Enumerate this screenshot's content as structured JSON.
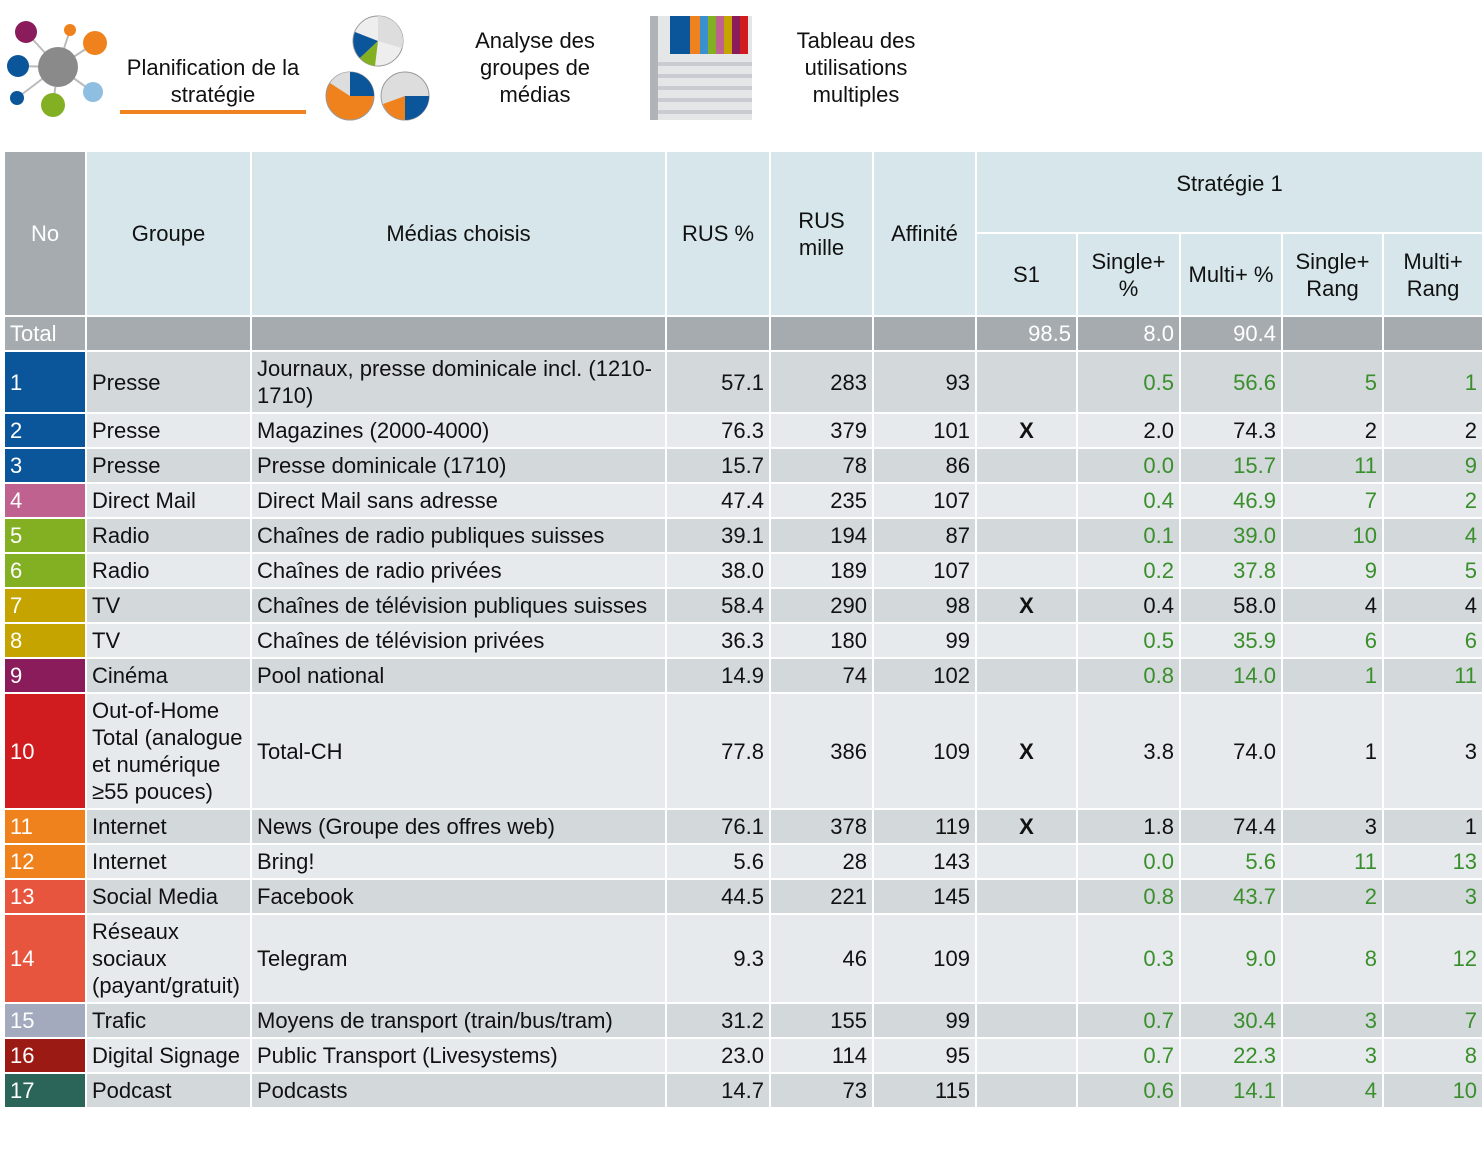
{
  "nav": {
    "tabs": [
      "Planification de la stratégie",
      "Analyse des groupes de médias",
      "Tableau des utilisations multiples"
    ]
  },
  "table": {
    "header": {
      "no": "No",
      "group": "Groupe",
      "media": "Médias choisis",
      "rus_pct": "RUS %",
      "rus_mille": "RUS mille",
      "affinity": "Affinité",
      "strategy": "Stratégie 1",
      "s1": "S1",
      "single_pct": "Single+ %",
      "multi_pct": "Multi+ %",
      "single_rank": "Single+ Rang",
      "multi_rank": "Multi+ Rang"
    },
    "total": {
      "label": "Total",
      "s1": "98.5",
      "single_pct": "8.0",
      "multi_pct": "90.4"
    },
    "rows": [
      {
        "no": "1",
        "color": "#0b559a",
        "group": "Presse",
        "media": "Journaux, presse dominicale incl. (1210-1710)",
        "rus_pct": "57.1",
        "rus_mille": "283",
        "affinity": "93",
        "s1": null,
        "single_pct": "0.5",
        "multi_pct": "56.6",
        "single_rank": "5",
        "multi_rank": "1"
      },
      {
        "no": "2",
        "color": "#0b559a",
        "group": "Presse",
        "media": "Magazines (2000-4000)",
        "rus_pct": "76.3",
        "rus_mille": "379",
        "affinity": "101",
        "s1": "X",
        "single_pct": "2.0",
        "multi_pct": "74.3",
        "single_rank": "2",
        "multi_rank": "2"
      },
      {
        "no": "3",
        "color": "#0b559a",
        "group": "Presse",
        "media": "Presse dominicale (1710)",
        "rus_pct": "15.7",
        "rus_mille": "78",
        "affinity": "86",
        "s1": null,
        "single_pct": "0.0",
        "multi_pct": "15.7",
        "single_rank": "11",
        "multi_rank": "9"
      },
      {
        "no": "4",
        "color": "#c0628f",
        "group": "Direct Mail",
        "media": "Direct Mail sans adresse",
        "rus_pct": "47.4",
        "rus_mille": "235",
        "affinity": "107",
        "s1": null,
        "single_pct": "0.4",
        "multi_pct": "46.9",
        "single_rank": "7",
        "multi_rank": "2"
      },
      {
        "no": "5",
        "color": "#82b022",
        "group": "Radio",
        "media": "Chaînes de radio publiques suisses",
        "rus_pct": "39.1",
        "rus_mille": "194",
        "affinity": "87",
        "s1": null,
        "single_pct": "0.1",
        "multi_pct": "39.0",
        "single_rank": "10",
        "multi_rank": "4"
      },
      {
        "no": "6",
        "color": "#82b022",
        "group": "Radio",
        "media": "Chaînes de radio privées",
        "rus_pct": "38.0",
        "rus_mille": "189",
        "affinity": "107",
        "s1": null,
        "single_pct": "0.2",
        "multi_pct": "37.8",
        "single_rank": "9",
        "multi_rank": "5"
      },
      {
        "no": "7",
        "color": "#c6a400",
        "group": "TV",
        "media": "Chaînes de télévision publiques suisses",
        "rus_pct": "58.4",
        "rus_mille": "290",
        "affinity": "98",
        "s1": "X",
        "single_pct": "0.4",
        "multi_pct": "58.0",
        "single_rank": "4",
        "multi_rank": "4"
      },
      {
        "no": "8",
        "color": "#c6a400",
        "group": "TV",
        "media": "Chaînes de télévision privées",
        "rus_pct": "36.3",
        "rus_mille": "180",
        "affinity": "99",
        "s1": null,
        "single_pct": "0.5",
        "multi_pct": "35.9",
        "single_rank": "6",
        "multi_rank": "6"
      },
      {
        "no": "9",
        "color": "#8a1c5b",
        "group": "Cinéma",
        "media": "Pool national",
        "rus_pct": "14.9",
        "rus_mille": "74",
        "affinity": "102",
        "s1": null,
        "single_pct": "0.8",
        "multi_pct": "14.0",
        "single_rank": "1",
        "multi_rank": "11"
      },
      {
        "no": "10",
        "color": "#d01c1f",
        "group": "Out-of-Home Total (analogue et numérique ≥55 pouces)",
        "media": "Total-CH",
        "rus_pct": "77.8",
        "rus_mille": "386",
        "affinity": "109",
        "s1": "X",
        "single_pct": "3.8",
        "multi_pct": "74.0",
        "single_rank": "1",
        "multi_rank": "3"
      },
      {
        "no": "11",
        "color": "#f0821e",
        "group": "Internet",
        "media": "News (Groupe des offres web)",
        "rus_pct": "76.1",
        "rus_mille": "378",
        "affinity": "119",
        "s1": "X",
        "single_pct": "1.8",
        "multi_pct": "74.4",
        "single_rank": "3",
        "multi_rank": "1"
      },
      {
        "no": "12",
        "color": "#f0821e",
        "group": "Internet",
        "media": "Bring!",
        "rus_pct": "5.6",
        "rus_mille": "28",
        "affinity": "143",
        "s1": null,
        "single_pct": "0.0",
        "multi_pct": "5.6",
        "single_rank": "11",
        "multi_rank": "13"
      },
      {
        "no": "13",
        "color": "#e8553f",
        "group": "Social Media",
        "media": "Facebook",
        "rus_pct": "44.5",
        "rus_mille": "221",
        "affinity": "145",
        "s1": null,
        "single_pct": "0.8",
        "multi_pct": "43.7",
        "single_rank": "2",
        "multi_rank": "3"
      },
      {
        "no": "14",
        "color": "#e8553f",
        "group": "Réseaux sociaux (payant/gratuit)",
        "media": "Telegram",
        "rus_pct": "9.3",
        "rus_mille": "46",
        "affinity": "109",
        "s1": null,
        "single_pct": "0.3",
        "multi_pct": "9.0",
        "single_rank": "8",
        "multi_rank": "12"
      },
      {
        "no": "15",
        "color": "#a3aabd",
        "group": "Trafic",
        "media": "Moyens de transport (train/bus/tram)",
        "rus_pct": "31.2",
        "rus_mille": "155",
        "affinity": "99",
        "s1": null,
        "single_pct": "0.7",
        "multi_pct": "30.4",
        "single_rank": "3",
        "multi_rank": "7"
      },
      {
        "no": "16",
        "color": "#9b1b14",
        "group": "Digital Signage",
        "media": "Public Transport (Livesystems)",
        "rus_pct": "23.0",
        "rus_mille": "114",
        "affinity": "95",
        "s1": null,
        "single_pct": "0.7",
        "multi_pct": "22.3",
        "single_rank": "3",
        "multi_rank": "8"
      },
      {
        "no": "17",
        "color": "#2b6458",
        "group": "Podcast",
        "media": "Podcasts",
        "rus_pct": "14.7",
        "rus_mille": "73",
        "affinity": "115",
        "s1": null,
        "single_pct": "0.6",
        "multi_pct": "14.1",
        "single_rank": "4",
        "multi_rank": "10"
      }
    ]
  }
}
